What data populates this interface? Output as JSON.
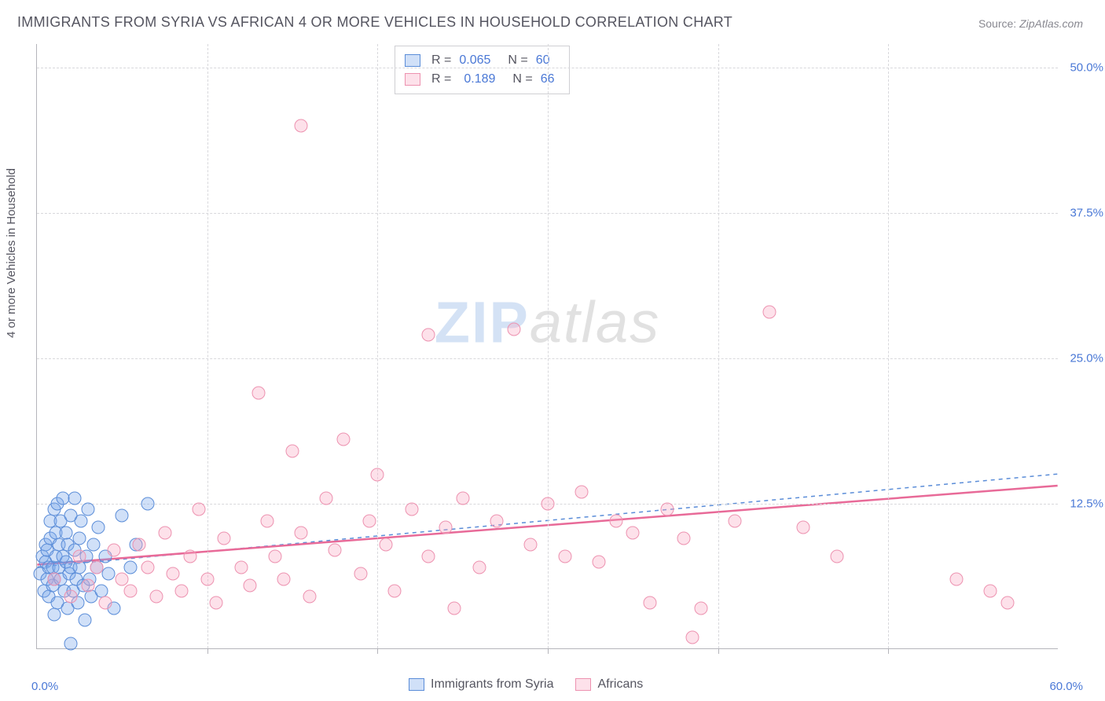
{
  "title": "IMMIGRANTS FROM SYRIA VS AFRICAN 4 OR MORE VEHICLES IN HOUSEHOLD CORRELATION CHART",
  "source_label": "Source:",
  "source_value": "ZipAtlas.com",
  "watermark_a": "ZIP",
  "watermark_b": "atlas",
  "ylabel": "4 or more Vehicles in Household",
  "chart": {
    "type": "scatter",
    "background_color": "#ffffff",
    "grid_color": "#d8d8dc",
    "axis_color": "#b5b5bb",
    "text_color": "#555560",
    "value_color": "#4a78d6",
    "label_fontsize": 15,
    "title_fontsize": 18,
    "tick_fontsize": 15,
    "xlim": [
      0,
      60
    ],
    "ylim": [
      0,
      52
    ],
    "y_gridlines": [
      12.5,
      25.0,
      37.5,
      50.0
    ],
    "ytick_labels": [
      "12.5%",
      "25.0%",
      "37.5%",
      "50.0%"
    ],
    "x_gridlines": [
      10,
      20,
      30,
      40,
      50
    ],
    "xtick_label_left": "0.0%",
    "xtick_label_right": "60.0%",
    "series": [
      {
        "name": "Immigrants from Syria",
        "key": "syria",
        "marker": "circle",
        "marker_size": 17,
        "fill": "rgba(120,165,235,0.35)",
        "stroke": "#5b8dd8",
        "R": "0.065",
        "N": "60",
        "trend": {
          "x1": 0,
          "y1": 7.0,
          "x2": 60,
          "y2": 15.0,
          "dash": "5,5",
          "width": 1.5,
          "color": "#5b8dd8"
        },
        "points": [
          [
            0.2,
            6.5
          ],
          [
            0.3,
            8
          ],
          [
            0.4,
            5
          ],
          [
            0.5,
            7.5
          ],
          [
            0.5,
            9
          ],
          [
            0.6,
            6
          ],
          [
            0.6,
            8.5
          ],
          [
            0.7,
            4.5
          ],
          [
            0.7,
            7
          ],
          [
            0.8,
            9.5
          ],
          [
            0.8,
            11
          ],
          [
            0.9,
            5.5
          ],
          [
            0.9,
            7
          ],
          [
            1.0,
            12
          ],
          [
            1.0,
            6
          ],
          [
            1.1,
            8
          ],
          [
            1.1,
            10
          ],
          [
            1.2,
            12.5
          ],
          [
            1.2,
            4
          ],
          [
            1.3,
            7
          ],
          [
            1.3,
            9
          ],
          [
            1.4,
            11
          ],
          [
            1.4,
            6
          ],
          [
            1.5,
            13
          ],
          [
            1.5,
            8
          ],
          [
            1.6,
            5
          ],
          [
            1.7,
            10
          ],
          [
            1.7,
            7.5
          ],
          [
            1.8,
            3.5
          ],
          [
            1.8,
            9
          ],
          [
            1.9,
            6.5
          ],
          [
            2.0,
            11.5
          ],
          [
            2.0,
            7
          ],
          [
            2.1,
            5
          ],
          [
            2.2,
            8.5
          ],
          [
            2.2,
            13
          ],
          [
            2.3,
            6
          ],
          [
            2.4,
            4
          ],
          [
            2.5,
            9.5
          ],
          [
            2.5,
            7
          ],
          [
            2.6,
            11
          ],
          [
            2.7,
            5.5
          ],
          [
            2.8,
            2.5
          ],
          [
            2.9,
            8
          ],
          [
            3.0,
            12
          ],
          [
            3.1,
            6
          ],
          [
            3.2,
            4.5
          ],
          [
            3.3,
            9
          ],
          [
            3.5,
            7
          ],
          [
            3.6,
            10.5
          ],
          [
            3.8,
            5
          ],
          [
            4.0,
            8
          ],
          [
            4.2,
            6.5
          ],
          [
            4.5,
            3.5
          ],
          [
            5.0,
            11.5
          ],
          [
            5.5,
            7
          ],
          [
            5.8,
            9
          ],
          [
            2.0,
            0.5
          ],
          [
            6.5,
            12.5
          ],
          [
            1.0,
            3.0
          ]
        ]
      },
      {
        "name": "Africans",
        "key": "african",
        "marker": "circle",
        "marker_size": 17,
        "fill": "rgba(248,170,195,0.35)",
        "stroke": "#ed92b0",
        "R": "0.189",
        "N": "66",
        "trend": {
          "x1": 0,
          "y1": 7.2,
          "x2": 60,
          "y2": 14.0,
          "dash": "none",
          "width": 2.5,
          "color": "#e86a98"
        },
        "points": [
          [
            1.0,
            6
          ],
          [
            2.0,
            4.5
          ],
          [
            2.5,
            8
          ],
          [
            3.0,
            5.5
          ],
          [
            3.5,
            7
          ],
          [
            4.0,
            4
          ],
          [
            4.5,
            8.5
          ],
          [
            5.0,
            6
          ],
          [
            5.5,
            5
          ],
          [
            6.0,
            9
          ],
          [
            6.5,
            7
          ],
          [
            7.0,
            4.5
          ],
          [
            7.5,
            10
          ],
          [
            8.0,
            6.5
          ],
          [
            8.5,
            5
          ],
          [
            9.0,
            8
          ],
          [
            9.5,
            12
          ],
          [
            10.0,
            6
          ],
          [
            10.5,
            4
          ],
          [
            11.0,
            9.5
          ],
          [
            12.0,
            7
          ],
          [
            12.5,
            5.5
          ],
          [
            13.0,
            22
          ],
          [
            13.5,
            11
          ],
          [
            14.0,
            8
          ],
          [
            14.5,
            6
          ],
          [
            15.0,
            17
          ],
          [
            15.5,
            10
          ],
          [
            16.0,
            4.5
          ],
          [
            15.5,
            45
          ],
          [
            17.0,
            13
          ],
          [
            17.5,
            8.5
          ],
          [
            18.0,
            18
          ],
          [
            19.0,
            6.5
          ],
          [
            19.5,
            11
          ],
          [
            20.0,
            15
          ],
          [
            20.5,
            9
          ],
          [
            21.0,
            5
          ],
          [
            22.0,
            12
          ],
          [
            23.0,
            8
          ],
          [
            23.0,
            27
          ],
          [
            24.0,
            10.5
          ],
          [
            24.5,
            3.5
          ],
          [
            25.0,
            13
          ],
          [
            26.0,
            7
          ],
          [
            27.0,
            11
          ],
          [
            28.0,
            27.5
          ],
          [
            29.0,
            9
          ],
          [
            30.0,
            12.5
          ],
          [
            31.0,
            8
          ],
          [
            32.0,
            13.5
          ],
          [
            33.0,
            7.5
          ],
          [
            34.0,
            11
          ],
          [
            35.0,
            10
          ],
          [
            36.0,
            4
          ],
          [
            37.0,
            12
          ],
          [
            38.0,
            9.5
          ],
          [
            38.5,
            1
          ],
          [
            39.0,
            3.5
          ],
          [
            41.0,
            11
          ],
          [
            43.0,
            29
          ],
          [
            45.0,
            10.5
          ],
          [
            47.0,
            8
          ],
          [
            54.0,
            6
          ],
          [
            56.0,
            5
          ],
          [
            57.0,
            4
          ]
        ]
      }
    ]
  },
  "bottom_legend": {
    "s1": "Immigrants from Syria",
    "s2": "Africans"
  },
  "stats_legend": {
    "R_label": "R =",
    "N_label": "N ="
  }
}
